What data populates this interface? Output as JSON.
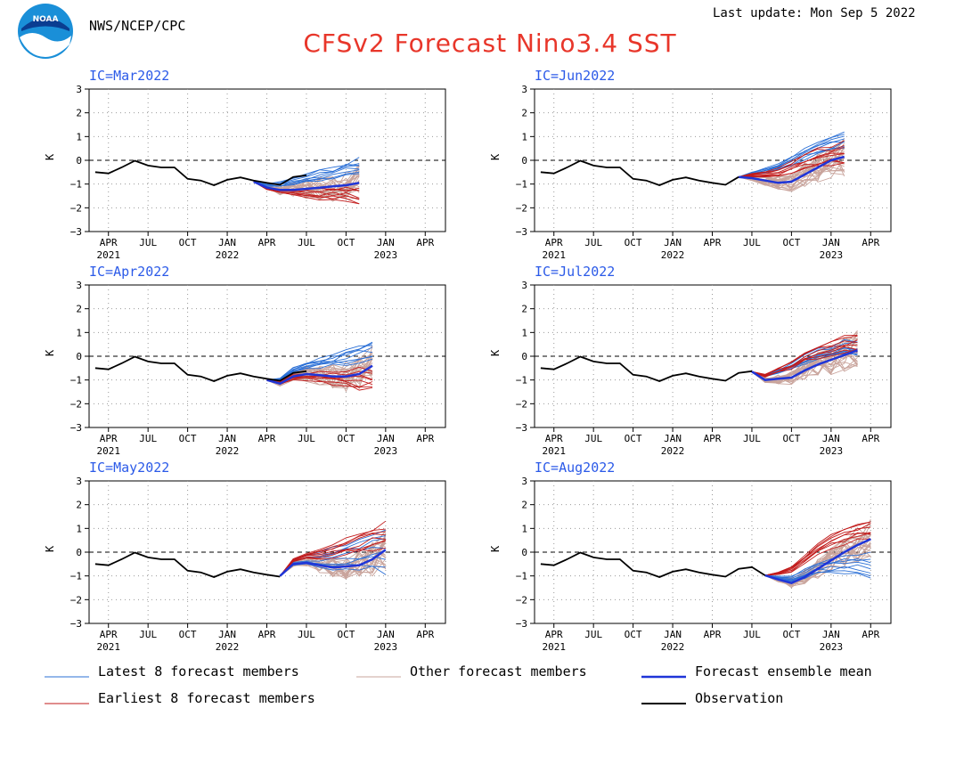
{
  "header": {
    "org": "NWS/NCEP/CPC",
    "title": "CFSv2 Forecast Nino3.4 SST",
    "last_update": "Last update: Mon Sep 5 2022",
    "logo_text": "NOAA"
  },
  "colors": {
    "title": "#e8362a",
    "ic_label": "#2b5ae8",
    "latest": "#2a6fd6",
    "other": "#c9a49c",
    "earliest": "#c21b1b",
    "mean": "#1f35d8",
    "observation": "#000000"
  },
  "legend": {
    "latest": "Latest 8 forecast members",
    "other": "Other forecast members",
    "mean": "Forecast ensemble mean",
    "earliest": "Earliest 8 forecast members",
    "observation": "Observation"
  },
  "chart_data": {
    "type": "line",
    "ylabel": "K",
    "ylim": [
      -3,
      3
    ],
    "yticks": [
      "3",
      "2",
      "1",
      "0",
      "−1",
      "−2",
      "−3"
    ],
    "xticks": [
      "APR",
      "JUL",
      "OCT",
      "JAN",
      "APR",
      "JUL",
      "OCT",
      "JAN",
      "APR"
    ],
    "years": [
      "2021",
      "2022",
      "2023"
    ],
    "grid": "dotted",
    "zero_line": "dashed",
    "observation": [
      {
        "x": "2021-03-15",
        "y": -0.5
      },
      {
        "x": "2021-04-15",
        "y": -0.55
      },
      {
        "x": "2021-05-15",
        "y": -0.3
      },
      {
        "x": "2021-06-15",
        "y": -0.02
      },
      {
        "x": "2021-07-15",
        "y": -0.22
      },
      {
        "x": "2021-08-15",
        "y": -0.3
      },
      {
        "x": "2021-09-15",
        "y": -0.3
      },
      {
        "x": "2021-10-15",
        "y": -0.78
      },
      {
        "x": "2021-11-15",
        "y": -0.85
      },
      {
        "x": "2021-12-15",
        "y": -1.05
      },
      {
        "x": "2022-01-15",
        "y": -0.82
      },
      {
        "x": "2022-02-15",
        "y": -0.72
      },
      {
        "x": "2022-03-15",
        "y": -0.85
      },
      {
        "x": "2022-04-15",
        "y": -0.95
      },
      {
        "x": "2022-05-15",
        "y": -1.03
      },
      {
        "x": "2022-06-15",
        "y": -0.7
      },
      {
        "x": "2022-07-15",
        "y": -0.63
      },
      {
        "x": "2022-08-15",
        "y": -0.98
      }
    ],
    "panels": [
      {
        "ic": "IC=Mar2022",
        "position": "left",
        "obs_until": "2022-07-15",
        "mean": [
          {
            "x": "2022-03-15",
            "y": -0.9
          },
          {
            "x": "2022-04-15",
            "y": -1.15
          },
          {
            "x": "2022-05-15",
            "y": -1.25
          },
          {
            "x": "2022-06-15",
            "y": -1.25
          },
          {
            "x": "2022-07-15",
            "y": -1.2
          },
          {
            "x": "2022-08-15",
            "y": -1.15
          },
          {
            "x": "2022-09-15",
            "y": -1.1
          },
          {
            "x": "2022-10-15",
            "y": -1.05
          },
          {
            "x": "2022-11-15",
            "y": -0.95
          }
        ],
        "latest_end": [
          0.0,
          -0.4,
          -0.6
        ],
        "earliest_end": [
          -1.85,
          -1.5,
          -1.2
        ]
      },
      {
        "ic": "IC=Jun2022",
        "position": "right",
        "obs_until": "2022-06-15",
        "mean": [
          {
            "x": "2022-06-15",
            "y": -0.7
          },
          {
            "x": "2022-07-15",
            "y": -0.75
          },
          {
            "x": "2022-08-15",
            "y": -0.85
          },
          {
            "x": "2022-09-15",
            "y": -0.95
          },
          {
            "x": "2022-10-15",
            "y": -0.9
          },
          {
            "x": "2022-11-15",
            "y": -0.6
          },
          {
            "x": "2022-12-15",
            "y": -0.3
          },
          {
            "x": "2023-01-15",
            "y": 0.0
          },
          {
            "x": "2023-02-15",
            "y": 0.15
          }
        ],
        "latest_end": [
          1.15,
          0.9,
          0.5
        ],
        "earliest_end": [
          0.7,
          0.4,
          -0.2
        ]
      },
      {
        "ic": "IC=Apr2022",
        "position": "left",
        "obs_until": "2022-07-15",
        "mean": [
          {
            "x": "2022-04-15",
            "y": -1.0
          },
          {
            "x": "2022-05-15",
            "y": -1.15
          },
          {
            "x": "2022-06-15",
            "y": -0.85
          },
          {
            "x": "2022-07-15",
            "y": -0.75
          },
          {
            "x": "2022-08-15",
            "y": -0.8
          },
          {
            "x": "2022-09-15",
            "y": -0.85
          },
          {
            "x": "2022-10-15",
            "y": -0.85
          },
          {
            "x": "2022-11-15",
            "y": -0.75
          },
          {
            "x": "2022-12-15",
            "y": -0.4
          }
        ],
        "latest_end": [
          0.6,
          0.2,
          -0.1
        ],
        "earliest_end": [
          -1.4,
          -1.0,
          -0.6
        ]
      },
      {
        "ic": "IC=Jul2022",
        "position": "right",
        "obs_until": "2022-07-15",
        "mean": [
          {
            "x": "2022-07-15",
            "y": -0.65
          },
          {
            "x": "2022-08-15",
            "y": -1.0
          },
          {
            "x": "2022-09-15",
            "y": -0.95
          },
          {
            "x": "2022-10-15",
            "y": -0.9
          },
          {
            "x": "2022-11-15",
            "y": -0.6
          },
          {
            "x": "2022-12-15",
            "y": -0.35
          },
          {
            "x": "2023-01-15",
            "y": -0.15
          },
          {
            "x": "2023-02-15",
            "y": 0.05
          },
          {
            "x": "2023-03-15",
            "y": 0.25
          }
        ],
        "latest_end": [
          0.6,
          0.3,
          0.0
        ],
        "earliest_end": [
          0.9,
          0.5,
          0.1
        ]
      },
      {
        "ic": "IC=May2022",
        "position": "left",
        "obs_until": "2022-05-15",
        "mean": [
          {
            "x": "2022-05-15",
            "y": -1.0
          },
          {
            "x": "2022-06-15",
            "y": -0.5
          },
          {
            "x": "2022-07-15",
            "y": -0.45
          },
          {
            "x": "2022-08-15",
            "y": -0.55
          },
          {
            "x": "2022-09-15",
            "y": -0.65
          },
          {
            "x": "2022-10-15",
            "y": -0.6
          },
          {
            "x": "2022-11-15",
            "y": -0.55
          },
          {
            "x": "2022-12-15",
            "y": -0.3
          },
          {
            "x": "2023-01-15",
            "y": 0.1
          }
        ],
        "latest_end": [
          1.0,
          0.5,
          -0.8
        ],
        "earliest_end": [
          1.25,
          0.7,
          0.2
        ]
      },
      {
        "ic": "IC=Aug2022",
        "position": "right",
        "obs_until": "2022-08-15",
        "mean": [
          {
            "x": "2022-08-15",
            "y": -0.98
          },
          {
            "x": "2022-09-15",
            "y": -1.15
          },
          {
            "x": "2022-10-15",
            "y": -1.3
          },
          {
            "x": "2022-11-15",
            "y": -1.05
          },
          {
            "x": "2022-12-15",
            "y": -0.7
          },
          {
            "x": "2023-01-15",
            "y": -0.35
          },
          {
            "x": "2023-02-15",
            "y": 0.0
          },
          {
            "x": "2023-03-15",
            "y": 0.3
          },
          {
            "x": "2023-04-15",
            "y": 0.55
          }
        ],
        "latest_end": [
          -0.2,
          -0.5,
          -1.15
        ],
        "earliest_end": [
          1.4,
          0.9,
          0.6
        ]
      }
    ]
  }
}
